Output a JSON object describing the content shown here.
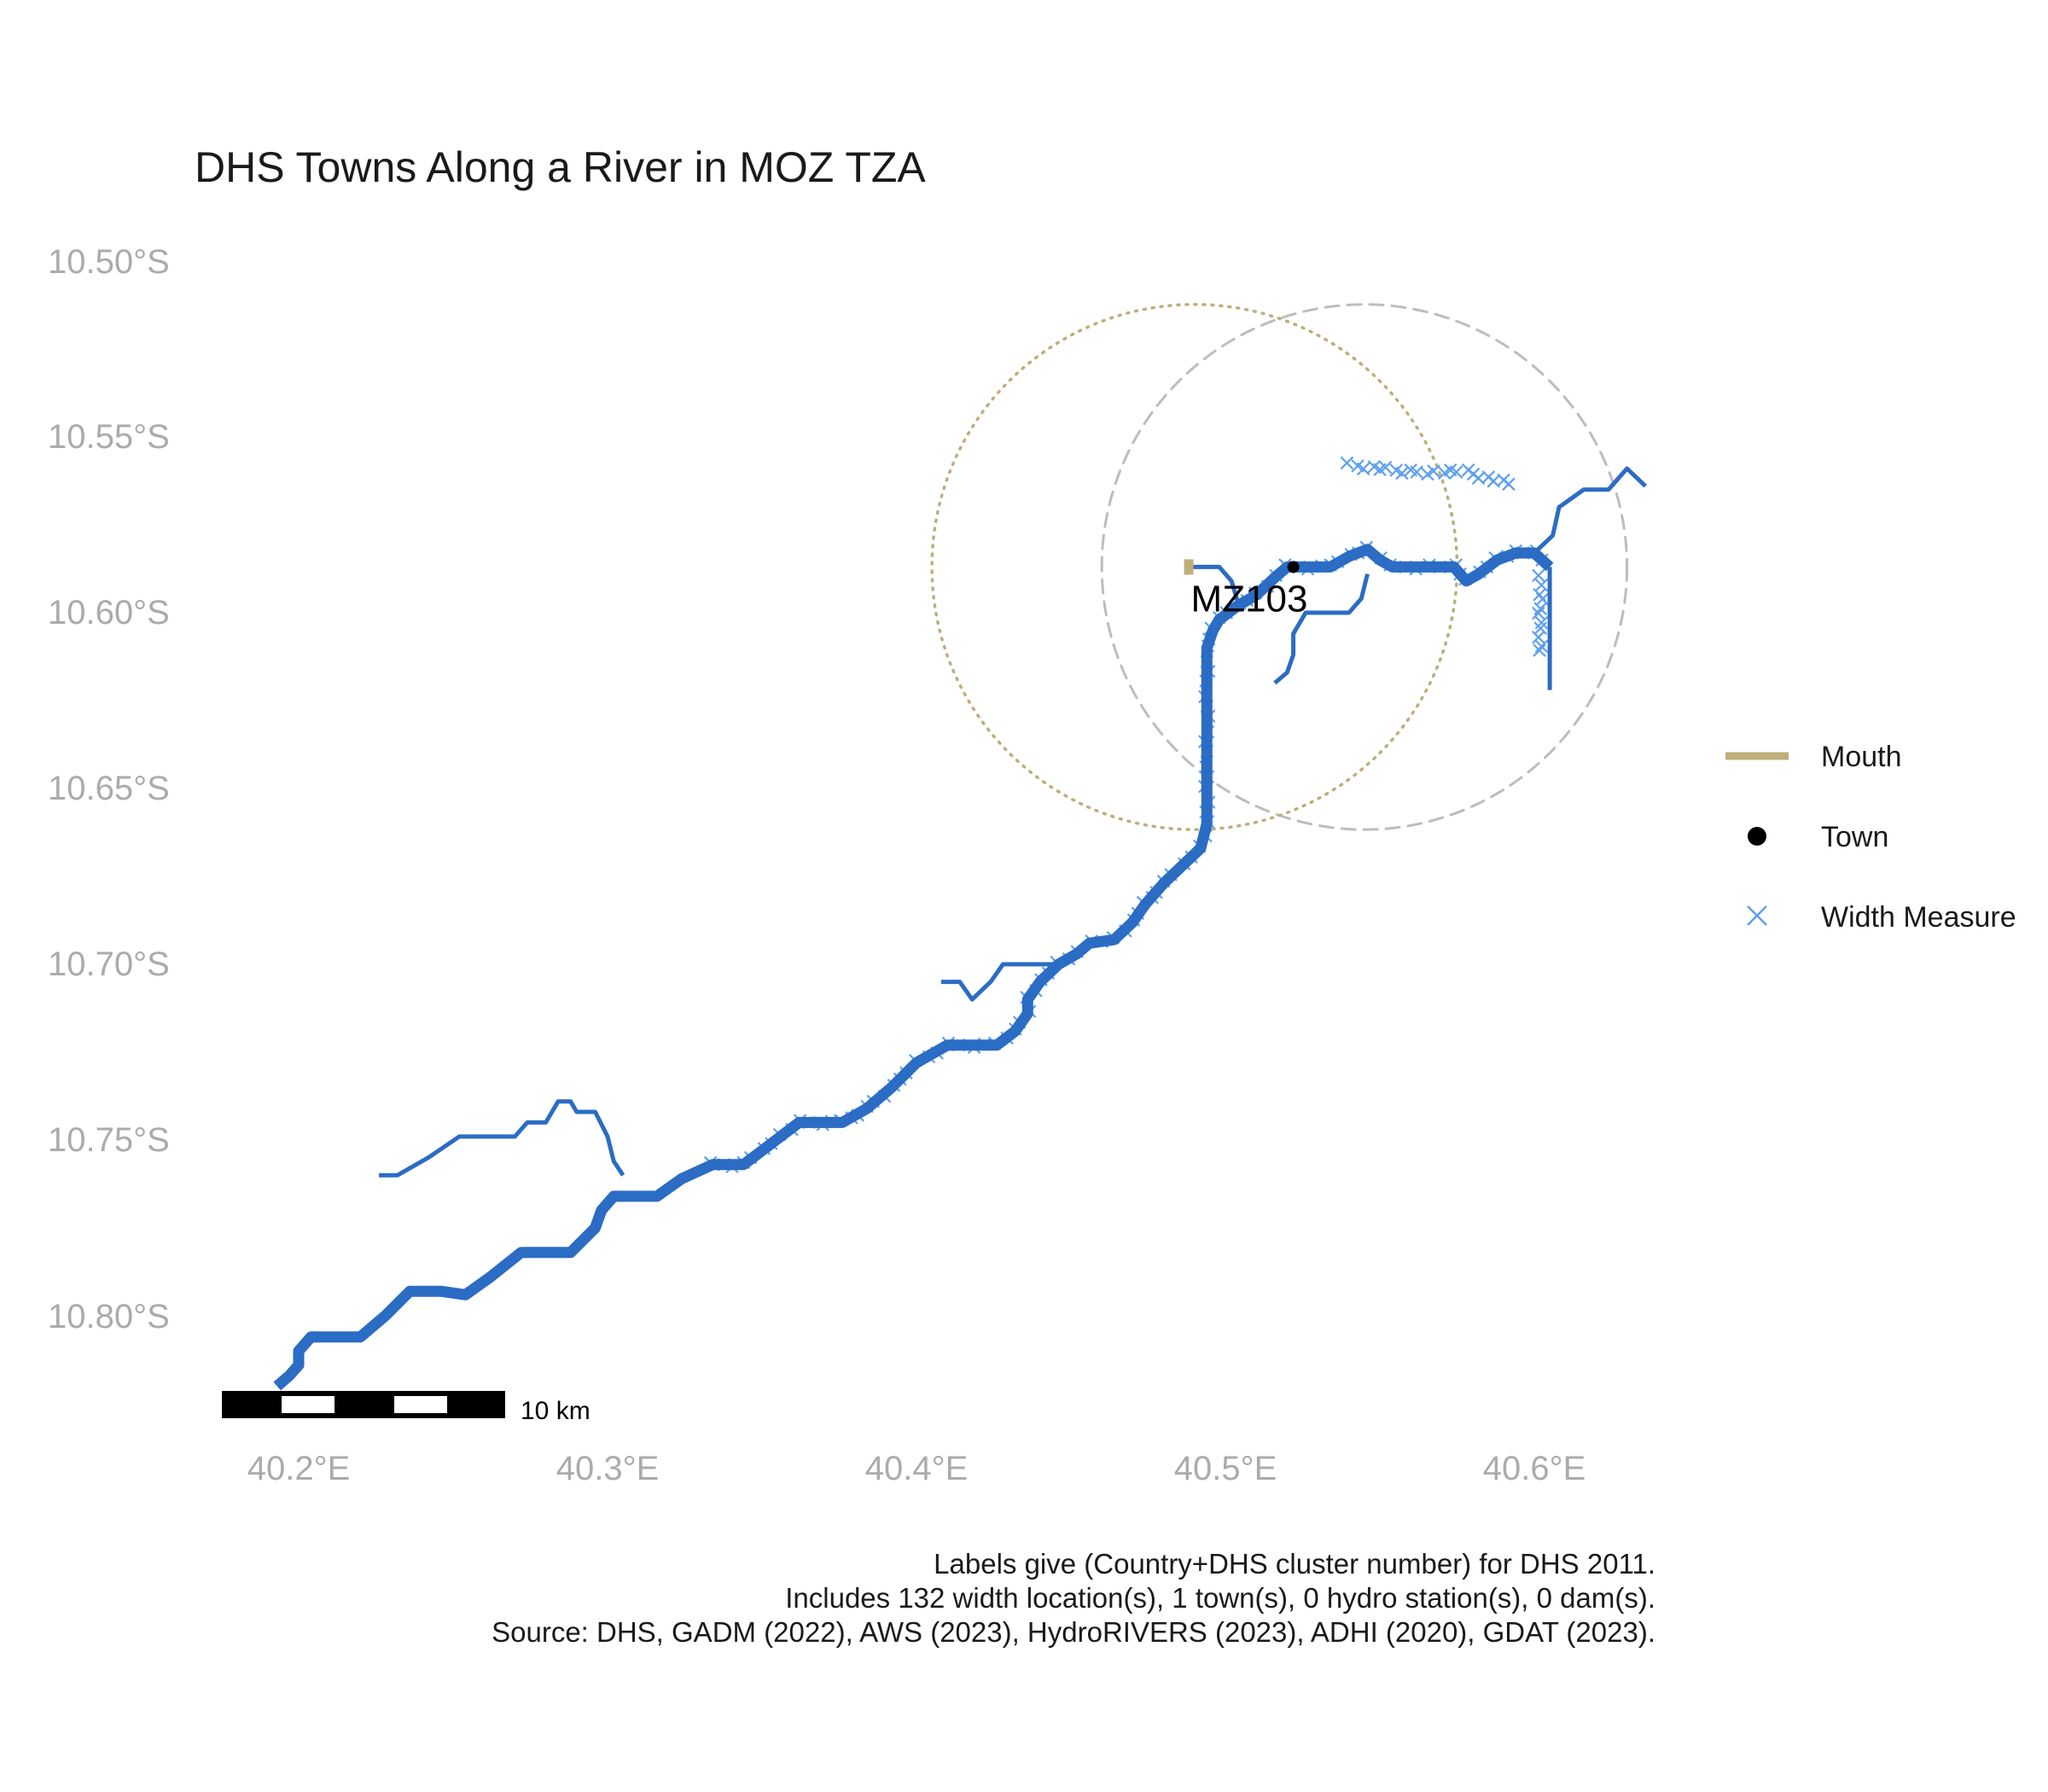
{
  "title": "DHS Towns Along a River in MOZ TZA",
  "axes": {
    "lat_ticks": [
      "10.50°S",
      "10.55°S",
      "10.60°S",
      "10.65°S",
      "10.70°S",
      "10.75°S",
      "10.80°S"
    ],
    "lon_ticks": [
      "40.2°E",
      "40.3°E",
      "40.4°E",
      "40.5°E",
      "40.6°E"
    ]
  },
  "legend": {
    "items": [
      {
        "label": "Mouth",
        "color": "#bfae7a",
        "icon": "line-swatch"
      },
      {
        "label": "Town",
        "color": "#000000",
        "icon": "dot"
      },
      {
        "label": "Width Measure",
        "color": "#5ea0ee",
        "icon": "cross"
      }
    ]
  },
  "town": {
    "label": "MZ103",
    "lon": 40.522,
    "lat": -10.587
  },
  "mouth": {
    "lon": 40.488,
    "lat": -10.587
  },
  "scale_bar": {
    "label": "10 km"
  },
  "caption": [
    "Labels give (Country+DHS cluster number) for DHS 2011.",
    "Includes 132 width location(s), 1 town(s), 0 hydro station(s), 0 dam(s).",
    "Source: DHS, GADM (2022), AWS (2023), HydroRIVERS (2023), ADHI (2020), GDAT (2023)."
  ],
  "colors": {
    "river": "#2b6cc4",
    "width_measure": "#5ea0ee",
    "mouth": "#bfae7a",
    "dashed_circle": "#bdbdbd",
    "dotted_circle": "#bfae7a"
  },
  "chart_data": {
    "type": "map",
    "main_river": [
      [
        40.193,
        -10.82
      ],
      [
        40.197,
        -10.817
      ],
      [
        40.2,
        -10.814
      ],
      [
        40.2,
        -10.81
      ],
      [
        40.204,
        -10.806
      ],
      [
        40.212,
        -10.806
      ],
      [
        40.22,
        -10.806
      ],
      [
        40.228,
        -10.8
      ],
      [
        40.236,
        -10.793
      ],
      [
        40.246,
        -10.793
      ],
      [
        40.254,
        -10.794
      ],
      [
        40.262,
        -10.789
      ],
      [
        40.272,
        -10.782
      ],
      [
        40.288,
        -10.782
      ],
      [
        40.296,
        -10.775
      ],
      [
        40.298,
        -10.77
      ],
      [
        40.302,
        -10.766
      ],
      [
        40.316,
        -10.766
      ],
      [
        40.324,
        -10.761
      ],
      [
        40.334,
        -10.757
      ],
      [
        40.344,
        -10.757
      ],
      [
        40.35,
        -10.753
      ],
      [
        40.356,
        -10.749
      ],
      [
        40.362,
        -10.745
      ],
      [
        40.376,
        -10.745
      ],
      [
        40.384,
        -10.741
      ],
      [
        40.392,
        -10.735
      ],
      [
        40.4,
        -10.728
      ],
      [
        40.41,
        -10.723
      ],
      [
        40.426,
        -10.723
      ],
      [
        40.432,
        -10.719
      ],
      [
        40.436,
        -10.714
      ],
      [
        40.436,
        -10.71
      ],
      [
        40.44,
        -10.705
      ],
      [
        40.446,
        -10.7
      ],
      [
        40.452,
        -10.697
      ],
      [
        40.456,
        -10.694
      ],
      [
        40.464,
        -10.693
      ],
      [
        40.47,
        -10.688
      ],
      [
        40.474,
        -10.683
      ],
      [
        40.48,
        -10.677
      ],
      [
        40.486,
        -10.672
      ],
      [
        40.492,
        -10.667
      ],
      [
        40.494,
        -10.66
      ],
      [
        40.494,
        -10.65
      ],
      [
        40.494,
        -10.64
      ],
      [
        40.494,
        -10.63
      ],
      [
        40.494,
        -10.62
      ],
      [
        40.494,
        -10.61
      ],
      [
        40.496,
        -10.605
      ],
      [
        40.498,
        -10.602
      ],
      [
        40.504,
        -10.598
      ],
      [
        40.51,
        -10.595
      ],
      [
        40.516,
        -10.59
      ],
      [
        40.52,
        -10.587
      ],
      [
        40.534,
        -10.587
      ],
      [
        40.54,
        -10.584
      ],
      [
        40.546,
        -10.582
      ],
      [
        40.55,
        -10.585
      ],
      [
        40.554,
        -10.587
      ],
      [
        40.566,
        -10.587
      ],
      [
        40.574,
        -10.587
      ],
      [
        40.578,
        -10.591
      ],
      [
        40.582,
        -10.589
      ],
      [
        40.588,
        -10.585
      ],
      [
        40.594,
        -10.583
      ],
      [
        40.6,
        -10.583
      ],
      [
        40.605,
        -10.587
      ]
    ],
    "tributaries": [
      [
        [
          40.226,
          -10.76
        ],
        [
          40.232,
          -10.76
        ],
        [
          40.242,
          -10.755
        ],
        [
          40.252,
          -10.749
        ],
        [
          40.27,
          -10.749
        ],
        [
          40.274,
          -10.745
        ],
        [
          40.28,
          -10.745
        ],
        [
          40.284,
          -10.739
        ],
        [
          40.288,
          -10.739
        ],
        [
          40.29,
          -10.742
        ],
        [
          40.296,
          -10.742
        ],
        [
          40.3,
          -10.749
        ],
        [
          40.302,
          -10.756
        ],
        [
          40.305,
          -10.76
        ]
      ],
      [
        [
          40.408,
          -10.705
        ],
        [
          40.414,
          -10.705
        ],
        [
          40.418,
          -10.71
        ],
        [
          40.424,
          -10.705
        ],
        [
          40.428,
          -10.7
        ],
        [
          40.444,
          -10.7
        ],
        [
          40.452,
          -10.697
        ]
      ],
      [
        [
          40.488,
          -10.587
        ],
        [
          40.498,
          -10.587
        ],
        [
          40.502,
          -10.591
        ],
        [
          40.504,
          -10.597
        ]
      ],
      [
        [
          40.516,
          -10.62
        ],
        [
          40.52,
          -10.617
        ],
        [
          40.522,
          -10.612
        ],
        [
          40.522,
          -10.606
        ],
        [
          40.526,
          -10.6
        ],
        [
          40.54,
          -10.6
        ],
        [
          40.544,
          -10.596
        ],
        [
          40.546,
          -10.589
        ]
      ],
      [
        [
          40.6,
          -10.583
        ],
        [
          40.606,
          -10.578
        ],
        [
          40.608,
          -10.57
        ],
        [
          40.616,
          -10.565
        ],
        [
          40.624,
          -10.565
        ],
        [
          40.63,
          -10.559
        ],
        [
          40.636,
          -10.564
        ]
      ],
      [
        [
          40.605,
          -10.587
        ],
        [
          40.605,
          -10.6
        ],
        [
          40.605,
          -10.61
        ],
        [
          40.605,
          -10.622
        ]
      ]
    ],
    "width_measures": {
      "count": 132,
      "segments": [
        [
          [
            40.54,
            -10.558
          ],
          [
            40.56,
            -10.56
          ],
          [
            40.578,
            -10.56
          ],
          [
            40.594,
            -10.564
          ]
        ],
        [
          [
            40.602,
            -10.59
          ],
          [
            40.602,
            -10.605
          ],
          [
            40.602,
            -10.613
          ]
        ]
      ]
    },
    "buffers": [
      {
        "style": "dashed",
        "center": [
          40.545,
          -10.587
        ],
        "radius_deg": 0.085
      },
      {
        "style": "dotted",
        "center": [
          40.49,
          -10.587
        ],
        "radius_deg": 0.085
      }
    ]
  }
}
